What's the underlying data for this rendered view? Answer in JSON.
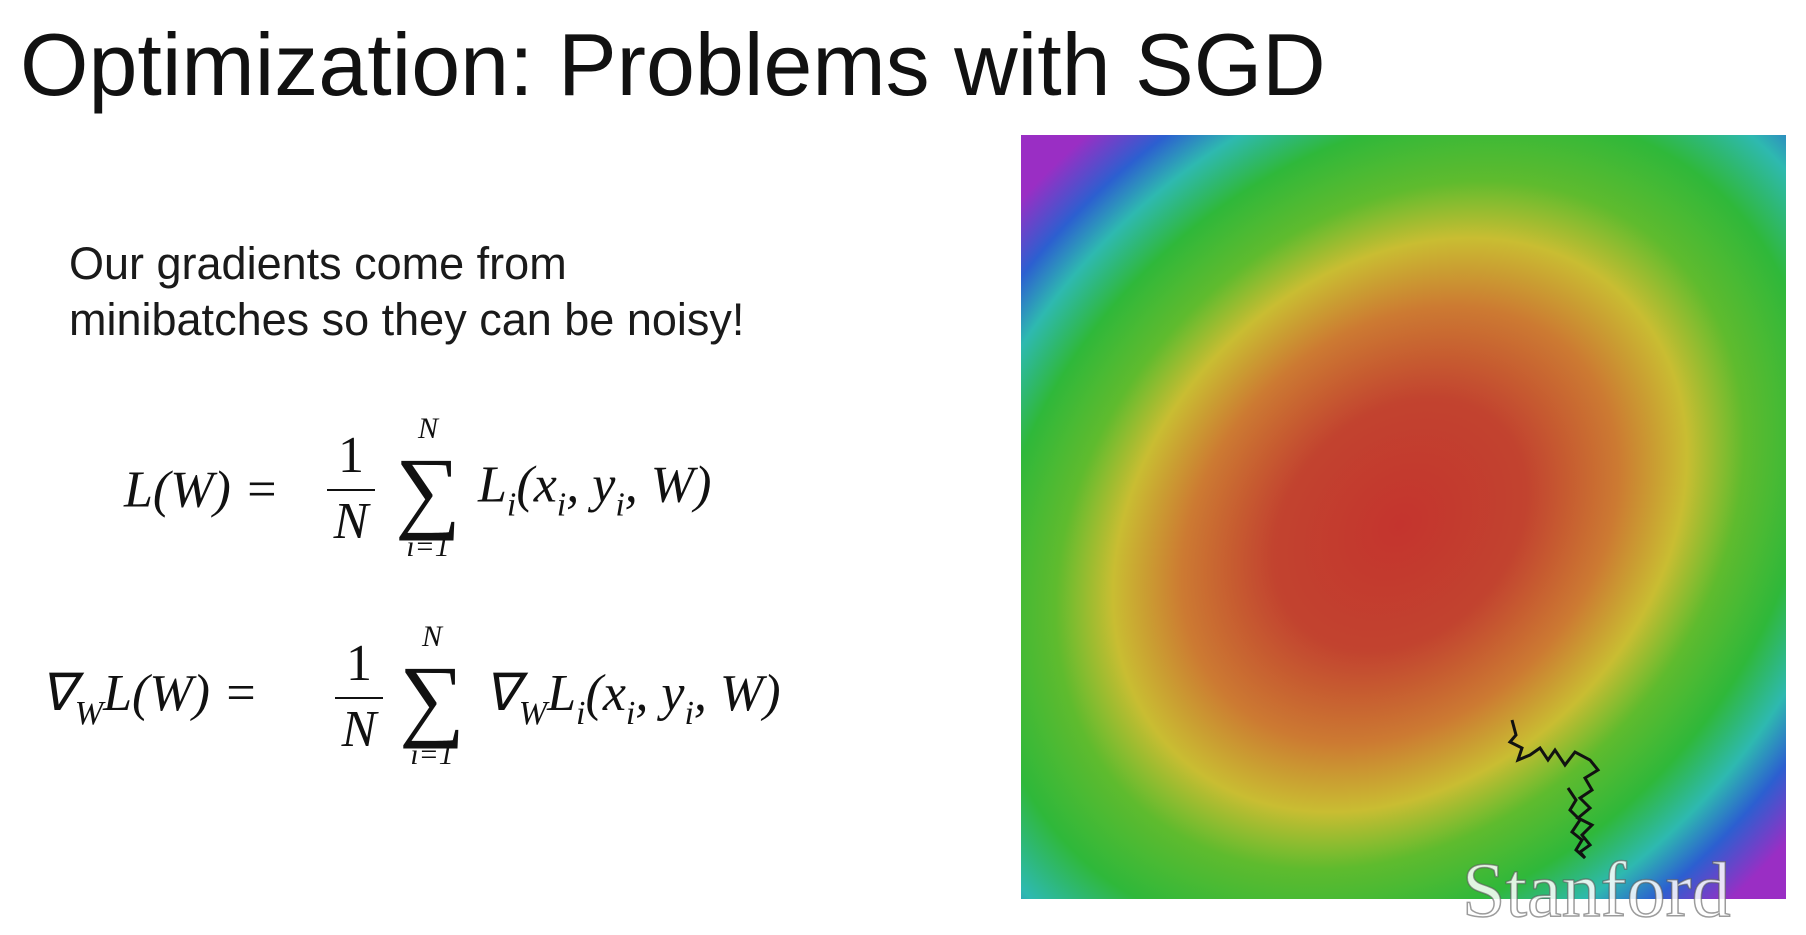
{
  "title": "Optimization: Problems with SGD",
  "body": [
    "Our gradients come from",
    "minibatches so they can be noisy!"
  ],
  "equations": [
    {
      "lhs": [
        {
          "text": "L(W) ="
        }
      ],
      "numerator": "1",
      "denominator": "N",
      "sum_upper": "N",
      "sum_lower": "i=1",
      "rhs": [
        {
          "text": "L"
        },
        {
          "text": "i",
          "sub": true
        },
        {
          "text": "(x"
        },
        {
          "text": "i",
          "sub": true
        },
        {
          "text": ", y"
        },
        {
          "text": "i",
          "sub": true
        },
        {
          "text": ", W)"
        }
      ]
    },
    {
      "lhs": [
        {
          "text": "∇"
        },
        {
          "text": "W",
          "sub": true
        },
        {
          "text": "L(W) ="
        }
      ],
      "numerator": "1",
      "denominator": "N",
      "sum_upper": "N",
      "sum_lower": "i=1",
      "rhs": [
        {
          "text": "∇"
        },
        {
          "text": "W",
          "sub": true
        },
        {
          "text": "L"
        },
        {
          "text": "i",
          "sub": true
        },
        {
          "text": "(x"
        },
        {
          "text": "i",
          "sub": true
        },
        {
          "text": ", y"
        },
        {
          "text": "i",
          "sub": true
        },
        {
          "text": ", W)"
        }
      ]
    }
  ],
  "watermark": "Stanford"
}
